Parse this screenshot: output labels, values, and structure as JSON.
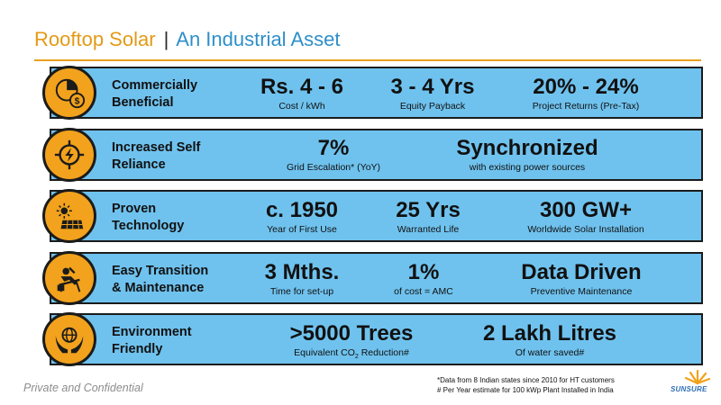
{
  "header": {
    "title": "Rooftop Solar",
    "separator": "|",
    "subtitle": "An Industrial Asset"
  },
  "rows": [
    {
      "icon": "pie-chart-dollar-icon",
      "label_line1": "Commercially",
      "label_line2": "Beneficial",
      "stats": [
        {
          "value": "Rs. 4 - 6",
          "caption": "Cost / kWh"
        },
        {
          "value": "3 - 4 Yrs",
          "caption": "Equity Payback"
        },
        {
          "value": "20% - 24%",
          "caption": "Project Returns (Pre-Tax)"
        }
      ]
    },
    {
      "icon": "lightning-target-icon",
      "label_line1": "Increased Self",
      "label_line2": "Reliance",
      "stats": [
        {
          "value": "7%",
          "caption": "Grid Escalation* (YoY)"
        },
        {
          "value": "Synchronized",
          "caption": "with existing power sources"
        }
      ]
    },
    {
      "icon": "solar-panel-icon",
      "label_line1": "Proven",
      "label_line2": "Technology",
      "stats": [
        {
          "value": "c. 1950",
          "caption": "Year of First Use"
        },
        {
          "value": "25 Yrs",
          "caption": "Warranted Life"
        },
        {
          "value": "300 GW+",
          "caption": "Worldwide Solar Installation"
        }
      ]
    },
    {
      "icon": "relaxing-person-icon",
      "label_line1": "Easy Transition",
      "label_line2": "& Maintenance",
      "stats": [
        {
          "value": "3 Mths.",
          "caption": "Time for set-up"
        },
        {
          "value": "1%",
          "caption": "of cost = AMC"
        },
        {
          "value": "Data Driven",
          "caption": "Preventive Maintenance"
        }
      ]
    },
    {
      "icon": "hands-globe-icon",
      "label_line1": "Environment",
      "label_line2": "Friendly",
      "stats": [
        {
          "value": ">5000 Trees",
          "caption_pre": "Equivalent CO",
          "caption_sub": "2",
          "caption_post": " Reduction#"
        },
        {
          "value": "2 Lakh Litres",
          "caption": "Of water saved#"
        }
      ]
    }
  ],
  "footer": {
    "confidential": "Private and Confidential",
    "footnote1": "*Data from 8 Indian states since 2010 for HT customers",
    "footnote2": "# Per Year estimate for 100 kWp Plant Installed in India",
    "logo_text": "SUNSURE"
  },
  "colors": {
    "title_orange": "#e39a16",
    "subtitle_blue": "#2e8fc9",
    "row_blue": "#6fc2ee",
    "circle_orange": "#f2a21c",
    "border": "#1b1b1b"
  }
}
